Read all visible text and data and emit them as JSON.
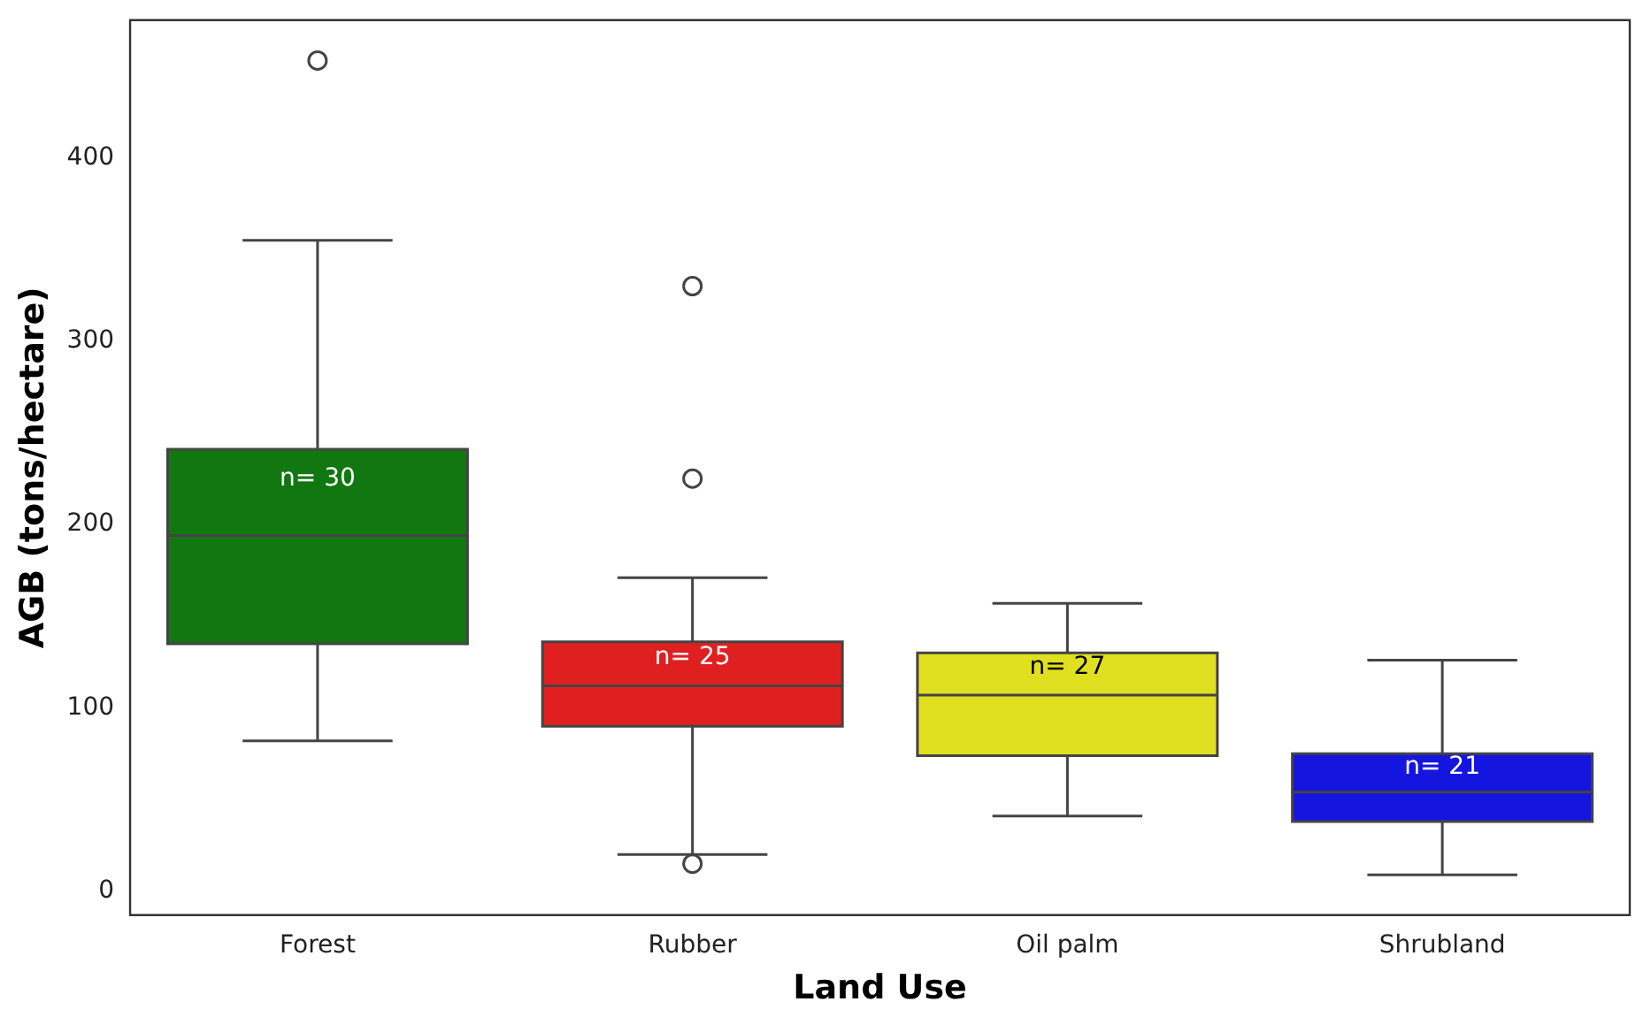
{
  "chart_data": {
    "type": "box",
    "xlabel": "Land Use",
    "ylabel": "AGB (tons/hectare)",
    "categories": [
      "Forest",
      "Rubber",
      "Oil palm",
      "Shrubland"
    ],
    "colors": [
      "#117711",
      "#e02020",
      "#e0e020",
      "#1515e0"
    ],
    "boxes": [
      {
        "low": 82,
        "q1": 135,
        "median": 194,
        "q3": 241,
        "high": 355,
        "outliers": [
          453
        ]
      },
      {
        "low": 20,
        "q1": 90,
        "median": 112,
        "q3": 136,
        "high": 171,
        "outliers": [
          330,
          225,
          15
        ]
      },
      {
        "low": 41,
        "q1": 74,
        "median": 107,
        "q3": 130,
        "high": 157
      },
      {
        "low": 9,
        "q1": 38,
        "median": 54,
        "q3": 75,
        "high": 126
      }
    ],
    "annotations": [
      "n= 30",
      "n= 25",
      "n= 27",
      "n= 21"
    ],
    "ylim": [
      -13,
      475
    ],
    "yticks": [
      0,
      100,
      200,
      300,
      400
    ],
    "grid": false,
    "legend": false
  }
}
